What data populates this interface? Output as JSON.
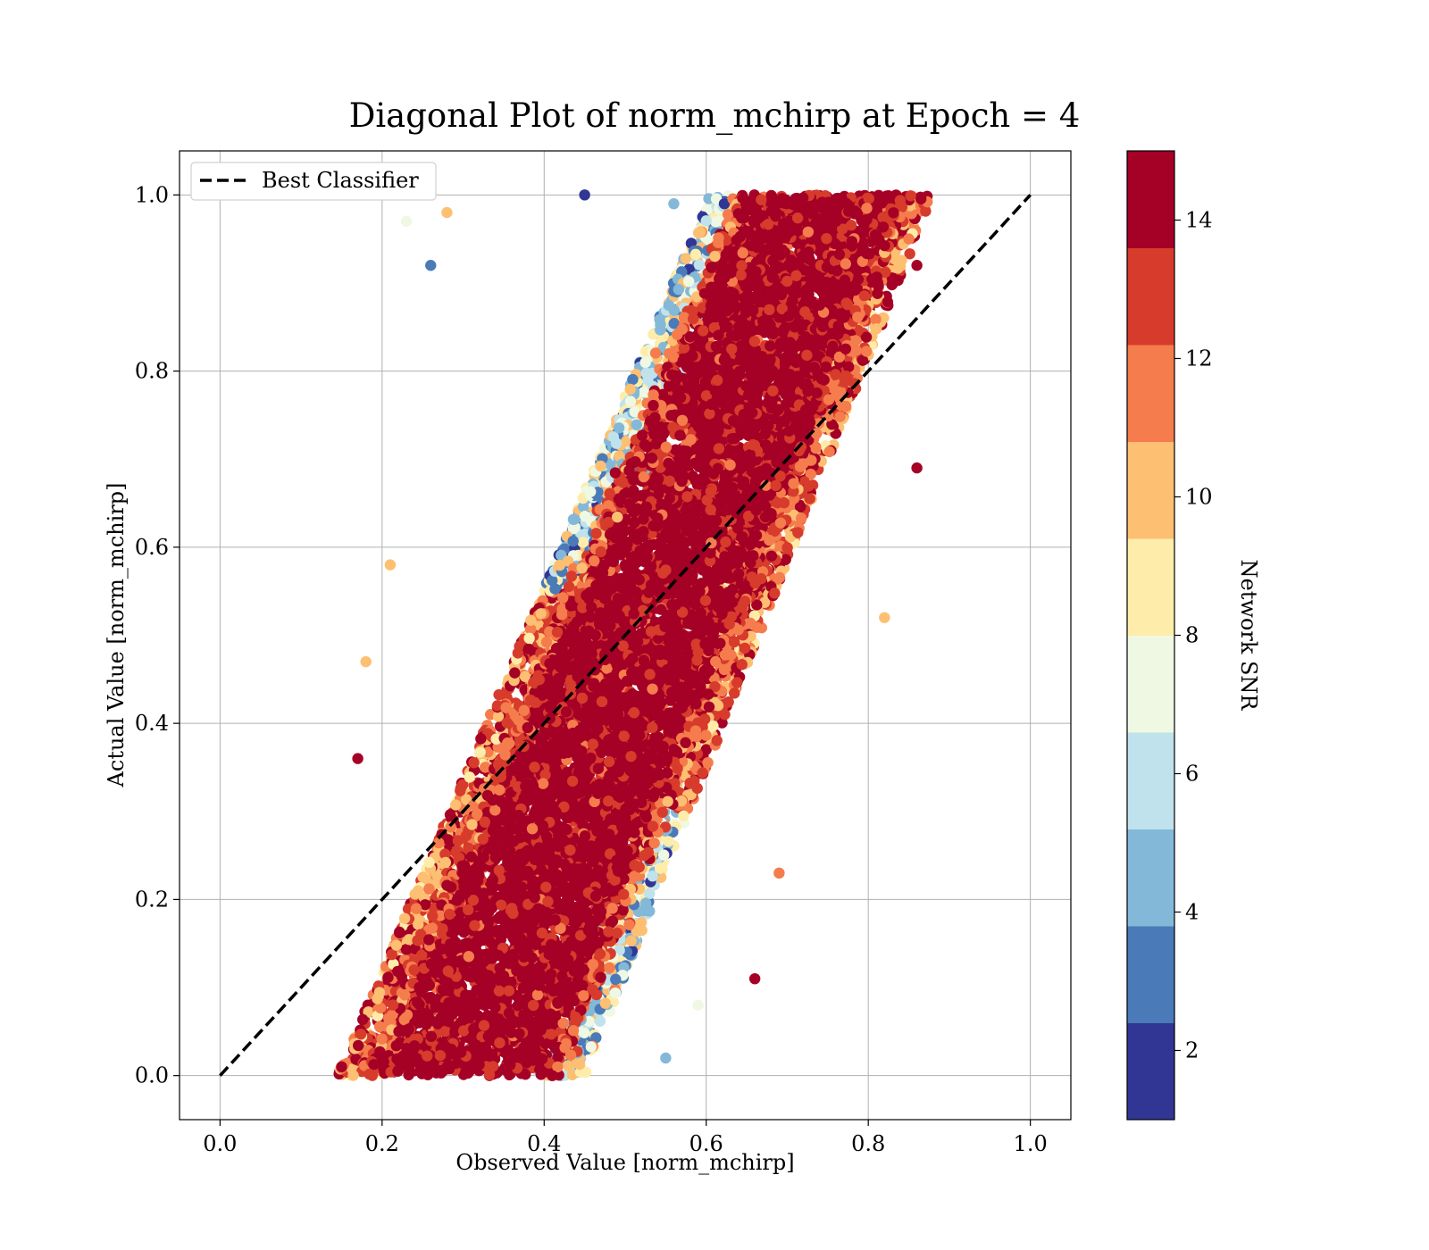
{
  "chart_data": {
    "type": "scatter",
    "title": "Diagonal Plot of norm_mchirp at Epoch = 4",
    "xlabel": "Observed Value [norm_mchirp]",
    "ylabel": "Actual Value [norm_mchirp]",
    "xlim": [
      -0.05,
      1.05
    ],
    "ylim": [
      -0.05,
      1.05
    ],
    "xticks": [
      "0.0",
      "0.2",
      "0.4",
      "0.6",
      "0.8",
      "1.0"
    ],
    "yticks": [
      "0.0",
      "0.2",
      "0.4",
      "0.6",
      "0.8",
      "1.0"
    ],
    "grid": true,
    "legend": {
      "position": "upper-left",
      "entries": [
        "Best Classifier"
      ]
    },
    "reference_line": {
      "name": "Best Classifier",
      "style": "dashed",
      "color": "#000000",
      "x": [
        0.0,
        1.0
      ],
      "y": [
        0.0,
        1.0
      ]
    },
    "colorbar": {
      "label": "Network SNR",
      "range": [
        1,
        15
      ],
      "ticks": [
        "2",
        "4",
        "6",
        "8",
        "10",
        "12",
        "14"
      ],
      "tick_values": [
        2,
        4,
        6,
        8,
        10,
        12,
        14
      ],
      "colormap": "RdYlBu_r",
      "colors": [
        "#313695",
        "#4575b4",
        "#74add1",
        "#abd9e9",
        "#e0f3f8",
        "#ffffbf",
        "#fee090",
        "#fdae61",
        "#f46d43",
        "#a50026"
      ],
      "discrete_colors": [
        "#313695",
        "#4a7ab7",
        "#84b8d8",
        "#c0e2ec",
        "#eff8e2",
        "#feedaa",
        "#fdbf72",
        "#f57c4c",
        "#d73b2c",
        "#a50026"
      ]
    },
    "point_cloud": {
      "description": "dense scatter band about the diagonal; red (high SNR) core, orange/yellow/blue (low SNR) fringe",
      "band": {
        "left_edge": {
          "x": [
            0.16,
            0.62
          ],
          "y": [
            0.0,
            1.0
          ]
        },
        "right_edge": {
          "x": [
            0.44,
            0.87
          ],
          "y": [
            0.0,
            1.0
          ]
        }
      },
      "sample_points": [
        {
          "x": 0.15,
          "y": 0.01,
          "snr": 14
        },
        {
          "x": 0.17,
          "y": 0.36,
          "snr": 14
        },
        {
          "x": 0.18,
          "y": 0.47,
          "snr": 10
        },
        {
          "x": 0.21,
          "y": 0.58,
          "snr": 10
        },
        {
          "x": 0.26,
          "y": 0.92,
          "snr": 3
        },
        {
          "x": 0.23,
          "y": 0.97,
          "snr": 7
        },
        {
          "x": 0.28,
          "y": 0.98,
          "snr": 10
        },
        {
          "x": 0.45,
          "y": 1.0,
          "snr": 2
        },
        {
          "x": 0.56,
          "y": 0.99,
          "snr": 4
        },
        {
          "x": 0.66,
          "y": 0.11,
          "snr": 14
        },
        {
          "x": 0.69,
          "y": 0.23,
          "snr": 12
        },
        {
          "x": 0.86,
          "y": 0.92,
          "snr": 14
        },
        {
          "x": 0.86,
          "y": 0.69,
          "snr": 14
        },
        {
          "x": 0.85,
          "y": 0.95,
          "snr": 11
        },
        {
          "x": 0.82,
          "y": 0.52,
          "snr": 10
        },
        {
          "x": 0.55,
          "y": 0.02,
          "snr": 5
        },
        {
          "x": 0.59,
          "y": 0.08,
          "snr": 7
        },
        {
          "x": 0.41,
          "y": 0.0,
          "snr": 14
        }
      ]
    }
  }
}
